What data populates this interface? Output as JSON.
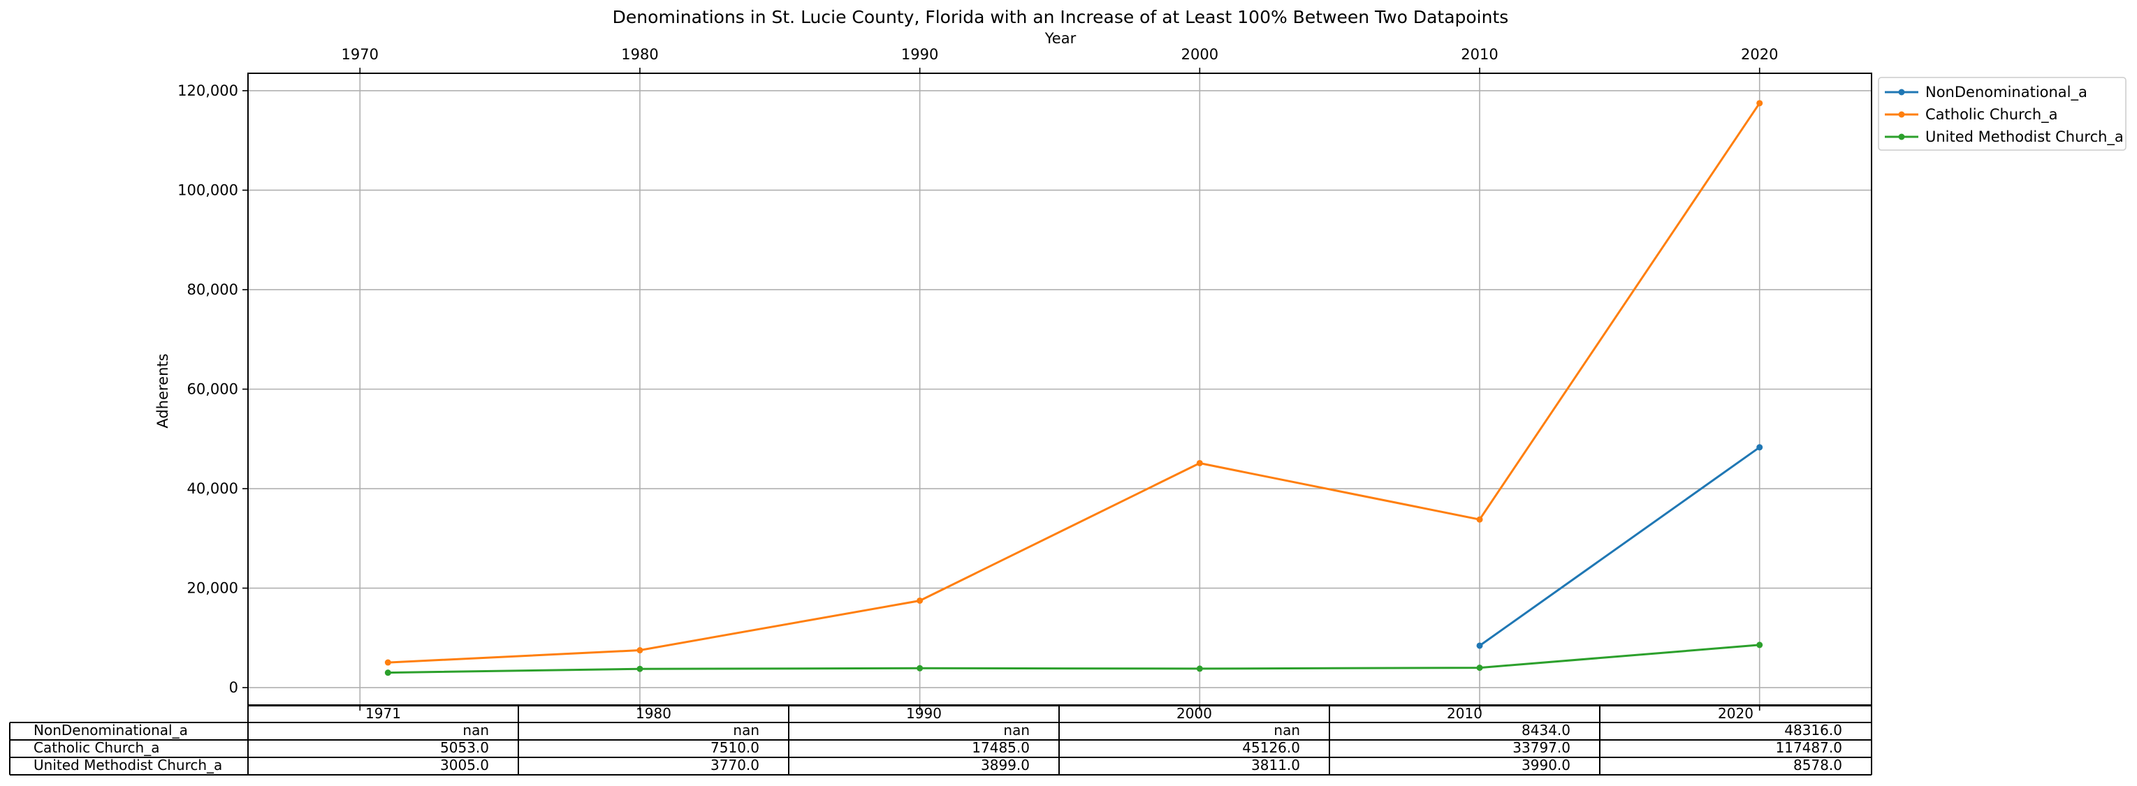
{
  "chart_data": {
    "type": "line",
    "title": "Denominations in St. Lucie County, Florida with an Increase of at Least 100% Between Two Datapoints",
    "xlabel": "Year",
    "ylabel": "Adherents",
    "xlim": [
      1966,
      2024
    ],
    "ylim": [
      -3500,
      123500
    ],
    "x_ticks": [
      1970,
      1980,
      1990,
      2000,
      2010,
      2020
    ],
    "x_tick_labels": [
      "1970",
      "1980",
      "1990",
      "2000",
      "2010",
      "2020"
    ],
    "y_ticks": [
      0,
      20000,
      40000,
      60000,
      80000,
      100000,
      120000
    ],
    "y_tick_labels": [
      "0",
      "20,000",
      "40,000",
      "60,000",
      "80,000",
      "100,000",
      "120,000"
    ],
    "grid": true,
    "legend_position": "outside-top-right",
    "x": [
      1971,
      1980,
      1990,
      2000,
      2010,
      2020
    ],
    "series": [
      {
        "name": "NonDenominational_a",
        "color": "#1f77b4",
        "values": [
          null,
          null,
          null,
          null,
          8434,
          48316
        ]
      },
      {
        "name": "Catholic Church_a",
        "color": "#ff7f0e",
        "values": [
          5053,
          7510,
          17485,
          45126,
          33797,
          117487
        ]
      },
      {
        "name": "United Methodist Church_a",
        "color": "#2ca02c",
        "values": [
          3005,
          3770,
          3899,
          3811,
          3990,
          8578
        ]
      }
    ],
    "table": {
      "columns": [
        "1971",
        "1980",
        "1990",
        "2000",
        "2010",
        "2020"
      ],
      "rows": [
        {
          "label": "NonDenominational_a",
          "cells": [
            "nan",
            "nan",
            "nan",
            "nan",
            "8434.0",
            "48316.0"
          ]
        },
        {
          "label": "Catholic Church_a",
          "cells": [
            "5053.0",
            "7510.0",
            "17485.0",
            "45126.0",
            "33797.0",
            "117487.0"
          ]
        },
        {
          "label": "United Methodist Church_a",
          "cells": [
            "3005.0",
            "3770.0",
            "3899.0",
            "3811.0",
            "3990.0",
            "8578.0"
          ]
        }
      ]
    }
  }
}
